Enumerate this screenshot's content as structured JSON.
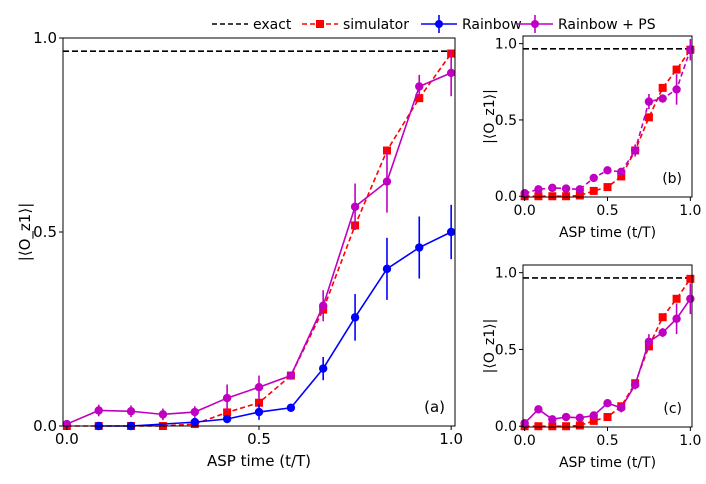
{
  "legend": {
    "items": [
      {
        "label": "exact",
        "color": "#000000",
        "style": "dashed",
        "marker": "none"
      },
      {
        "label": "simulator",
        "color": "#ff0000",
        "style": "dashed",
        "marker": "square"
      },
      {
        "label": "Rainbow",
        "color": "#0000ff",
        "style": "solid",
        "marker": "circle"
      },
      {
        "label": "Rainbow + PS",
        "color": "#c000c0",
        "style": "solid",
        "marker": "circle"
      }
    ]
  },
  "chart_data": [
    {
      "type": "line",
      "panel_label": "(a)",
      "xlabel": "ASP time (t/T)",
      "ylabel": "|⟨O_z1⟩|",
      "xlim": [
        0,
        1
      ],
      "ylim": [
        0,
        1
      ],
      "xticks": [
        "0.0",
        "0.5",
        "1.0"
      ],
      "yticks": [
        "0.0",
        "0.5",
        "1.0"
      ],
      "x": [
        0,
        0.083,
        0.167,
        0.25,
        0.333,
        0.417,
        0.5,
        0.583,
        0.667,
        0.75,
        0.833,
        0.917,
        1.0
      ],
      "exact": 0.966,
      "series": [
        {
          "name": "simulator",
          "values": [
            0,
            0,
            0,
            0,
            0.005,
            0.035,
            0.06,
            0.13,
            0.3,
            0.517,
            0.71,
            0.845,
            0.96
          ]
        },
        {
          "name": "Rainbow",
          "values": [
            null,
            0,
            0,
            null,
            0.01,
            0.018,
            0.036,
            0.047,
            0.148,
            0.28,
            0.405,
            0.46,
            0.5
          ],
          "errors": [
            null,
            0,
            0,
            null,
            0.01,
            0.01,
            0.02,
            0.01,
            0.03,
            0.06,
            0.08,
            0.08,
            0.07
          ]
        },
        {
          "name": "Rainbow + PS",
          "values": [
            0.005,
            0.04,
            0.038,
            0.03,
            0.036,
            0.072,
            0.1,
            0.13,
            0.31,
            0.565,
            0.63,
            0.875,
            0.91
          ],
          "errors": [
            0.01,
            0.015,
            0.015,
            0.015,
            0.015,
            0.035,
            0.03,
            0.01,
            0.04,
            0.06,
            0.08,
            0.03,
            0.06
          ]
        }
      ]
    },
    {
      "type": "line",
      "panel_label": "(b)",
      "xlabel": "ASP time (t/T)",
      "ylabel": "|⟨O_z1⟩|",
      "xlim": [
        0,
        1
      ],
      "ylim": [
        0,
        1.05
      ],
      "xticks": [
        "0.0",
        "0.5",
        "1.0"
      ],
      "yticks": [
        "0.0",
        "0.5",
        "1.0"
      ],
      "x": [
        0,
        0.083,
        0.167,
        0.25,
        0.333,
        0.417,
        0.5,
        0.583,
        0.667,
        0.75,
        0.833,
        0.917,
        1.0
      ],
      "exact": 0.966,
      "series": [
        {
          "name": "simulator",
          "values": [
            0,
            0,
            0,
            0,
            0.005,
            0.035,
            0.06,
            0.13,
            0.3,
            0.517,
            0.71,
            0.83,
            0.96
          ]
        },
        {
          "name": "Rainbow + PS",
          "style": "dashed",
          "values": [
            0.02,
            0.045,
            0.055,
            0.05,
            0.045,
            0.12,
            0.17,
            0.16,
            0.3,
            0.62,
            0.64,
            0.7,
            0.96
          ],
          "errors": [
            0.01,
            0.01,
            0.01,
            0.01,
            0.01,
            0.02,
            0.01,
            0.02,
            0.04,
            0.05,
            0.02,
            0.1,
            0.07
          ]
        }
      ]
    },
    {
      "type": "line",
      "panel_label": "(c)",
      "xlabel": "ASP time (t/T)",
      "ylabel": "|⟨O_z1⟩|",
      "xlim": [
        0,
        1
      ],
      "ylim": [
        0,
        1.05
      ],
      "xticks": [
        "0.0",
        "0.5",
        "1.0"
      ],
      "yticks": [
        "0.0",
        "0.5",
        "1.0"
      ],
      "x": [
        0,
        0.083,
        0.167,
        0.25,
        0.333,
        0.417,
        0.5,
        0.583,
        0.667,
        0.75,
        0.833,
        0.917,
        1.0
      ],
      "exact": 0.966,
      "series": [
        {
          "name": "simulator",
          "values": [
            0,
            0,
            0,
            0,
            0.005,
            0.035,
            0.06,
            0.13,
            0.28,
            0.52,
            0.71,
            0.83,
            0.96
          ]
        },
        {
          "name": "Rainbow + PS",
          "style": "solid",
          "values": [
            0.02,
            0.11,
            0.045,
            0.06,
            0.055,
            0.07,
            0.15,
            0.12,
            0.27,
            0.55,
            0.61,
            0.7,
            0.83
          ],
          "errors": [
            0.01,
            0.01,
            0.01,
            0.01,
            0.01,
            0.02,
            0.01,
            0.03,
            0.03,
            0.05,
            0.03,
            0.1,
            0.1
          ]
        }
      ]
    }
  ]
}
